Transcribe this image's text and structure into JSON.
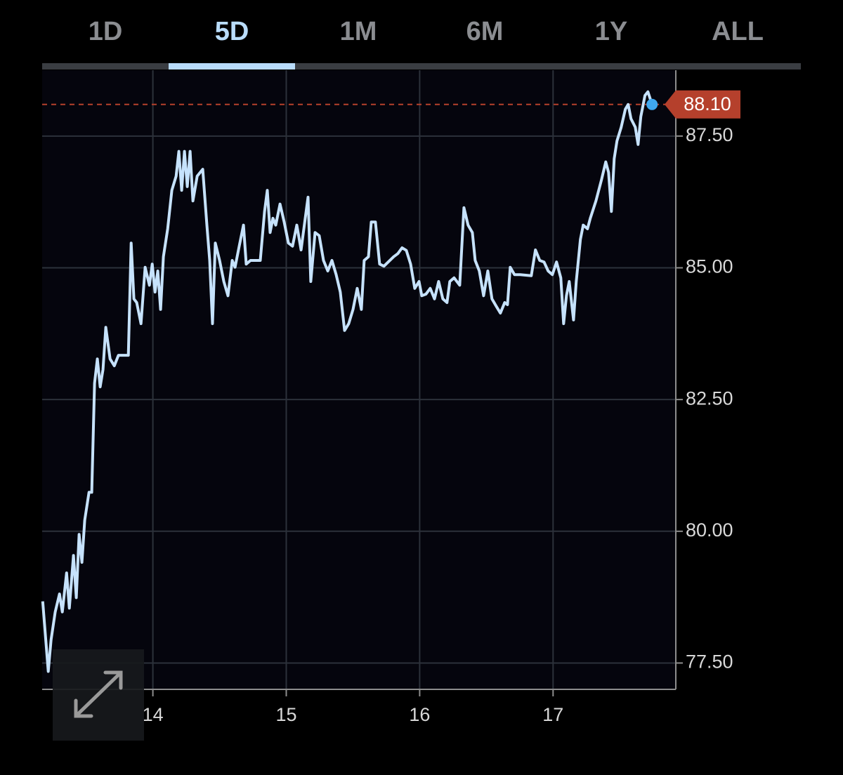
{
  "tabs": [
    "1D",
    "5D",
    "1M",
    "6M",
    "1Y",
    "ALL"
  ],
  "active_tab": 1,
  "chart_data": {
    "type": "line",
    "x": [
      13.174,
      13.216,
      13.237,
      13.268,
      13.3,
      13.321,
      13.353,
      13.374,
      13.405,
      13.426,
      13.447,
      13.468,
      13.489,
      13.521,
      13.542,
      13.563,
      13.584,
      13.605,
      13.626,
      13.647,
      13.679,
      13.711,
      13.742,
      13.816,
      13.837,
      13.858,
      13.879,
      13.911,
      13.942,
      13.974,
      13.995,
      14.016,
      14.037,
      14.058,
      14.079,
      14.111,
      14.142,
      14.174,
      14.195,
      14.216,
      14.237,
      14.258,
      14.279,
      14.3,
      14.332,
      14.374,
      14.405,
      14.426,
      14.447,
      14.468,
      14.5,
      14.532,
      14.563,
      14.595,
      14.616,
      14.647,
      14.679,
      14.7,
      14.732,
      14.805,
      14.837,
      14.858,
      14.879,
      14.9,
      14.921,
      14.953,
      14.984,
      15.016,
      15.047,
      15.079,
      15.111,
      15.142,
      15.163,
      15.184,
      15.216,
      15.247,
      15.279,
      15.311,
      15.342,
      15.374,
      15.405,
      15.437,
      15.468,
      15.5,
      15.532,
      15.563,
      15.584,
      15.616,
      15.637,
      15.668,
      15.7,
      15.732,
      15.805,
      15.837,
      15.868,
      15.9,
      15.932,
      15.963,
      15.995,
      16.016,
      16.047,
      16.079,
      16.111,
      16.142,
      16.174,
      16.205,
      16.226,
      16.258,
      16.3,
      16.332,
      16.363,
      16.395,
      16.416,
      16.447,
      16.479,
      16.511,
      16.542,
      16.574,
      16.605,
      16.637,
      16.658,
      16.679,
      16.711,
      16.753,
      16.837,
      16.868,
      16.9,
      16.932,
      16.963,
      16.995,
      17.026,
      17.058,
      17.079,
      17.1,
      17.121,
      17.153,
      17.174,
      17.205,
      17.226,
      17.258,
      17.279,
      17.321,
      17.363,
      17.395,
      17.416,
      17.437,
      17.458,
      17.479,
      17.511,
      17.542,
      17.563,
      17.584,
      17.616,
      17.637,
      17.658,
      17.689,
      17.711,
      17.742
    ],
    "series": [
      {
        "color": "#c6e2fc",
        "values": [
          78.67,
          77.34,
          77.94,
          78.47,
          78.81,
          78.47,
          79.21,
          78.54,
          79.54,
          78.74,
          79.94,
          79.41,
          80.21,
          80.74,
          80.74,
          82.81,
          83.27,
          82.74,
          83.07,
          83.87,
          83.27,
          83.14,
          83.34,
          83.34,
          85.47,
          84.41,
          84.34,
          83.94,
          85.01,
          84.67,
          85.07,
          84.54,
          84.94,
          84.21,
          85.21,
          85.74,
          86.47,
          86.74,
          87.21,
          86.47,
          87.21,
          86.54,
          87.21,
          86.27,
          86.74,
          86.87,
          85.81,
          85.14,
          83.94,
          85.47,
          85.14,
          84.74,
          84.47,
          85.14,
          85.01,
          85.41,
          85.81,
          85.07,
          85.14,
          85.14,
          86.07,
          86.47,
          85.67,
          85.94,
          85.81,
          86.21,
          85.87,
          85.47,
          85.41,
          85.81,
          85.34,
          85.94,
          86.34,
          84.74,
          85.67,
          85.61,
          85.14,
          84.94,
          85.14,
          84.87,
          84.54,
          83.81,
          83.94,
          84.21,
          84.61,
          84.21,
          85.14,
          85.21,
          85.87,
          85.87,
          85.07,
          85.03,
          85.21,
          85.27,
          85.38,
          85.33,
          85.07,
          84.61,
          84.74,
          84.47,
          84.5,
          84.61,
          84.41,
          84.74,
          84.41,
          84.34,
          84.74,
          84.81,
          84.67,
          86.14,
          85.81,
          85.67,
          85.14,
          84.94,
          84.47,
          84.94,
          84.41,
          84.27,
          84.14,
          84.34,
          84.3,
          85.01,
          84.87,
          84.87,
          84.85,
          85.34,
          85.14,
          85.11,
          84.94,
          84.87,
          85.11,
          84.81,
          83.94,
          84.47,
          84.74,
          84.01,
          84.74,
          85.54,
          85.81,
          85.74,
          85.94,
          86.27,
          86.67,
          87.01,
          86.81,
          86.07,
          87.07,
          87.41,
          87.67,
          88.01,
          88.1,
          87.83,
          87.67,
          87.34,
          87.87,
          88.27,
          88.34,
          88.1
        ]
      }
    ],
    "last_price": {
      "value": 88.1,
      "label": "88.10"
    },
    "xlim": [
      13.17,
      17.92
    ],
    "xticks": [
      14,
      15,
      16,
      17
    ],
    "ylim": [
      77,
      88.75
    ],
    "yticks": [
      {
        "value": 77.5,
        "label": "77.50"
      },
      {
        "value": 80,
        "label": "80.00"
      },
      {
        "value": 82.5,
        "label": "82.50"
      },
      {
        "value": 85,
        "label": "85.00"
      },
      {
        "value": 87.5,
        "label": "87.50"
      }
    ],
    "grid": true
  }
}
